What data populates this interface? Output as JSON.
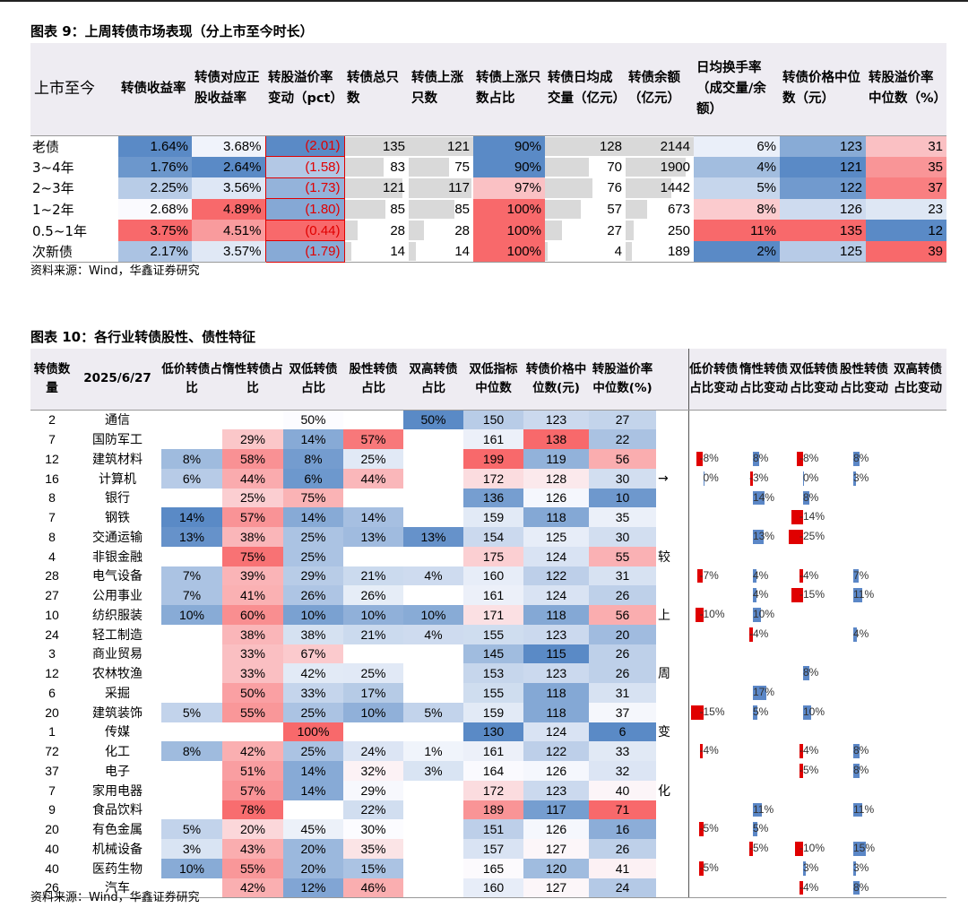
{
  "table1": {
    "title": "图表 9：上周转债市场表现（分上市至今时长）",
    "source": "资料来源：Wind，华鑫证券研究",
    "headers": [
      "上市至今",
      "转债收益率",
      "转债对应正股收益率",
      "转股溢价率变动（pct）",
      "转债总只数",
      "转债上涨只数",
      "转债上涨只数占比",
      "转债日均成交量（亿元）",
      "转债余额（亿元）",
      "日均换手率（成交量/余额）",
      "转债价格中位数（元）",
      "转股溢价率中位数（%）"
    ],
    "rows": [
      {
        "label": "老债",
        "ret": "1.64%",
        "stock_ret": "3.68%",
        "prem_chg": "(2.01)",
        "total": "135",
        "up": "121",
        "up_ratio": "90%",
        "volume": "128",
        "balance": "2144",
        "turnover": "6%",
        "price_med": "123",
        "prem_med": "31"
      },
      {
        "label": "3~4年",
        "ret": "1.76%",
        "stock_ret": "2.64%",
        "prem_chg": "(1.58)",
        "total": "83",
        "up": "75",
        "up_ratio": "90%",
        "volume": "70",
        "balance": "1900",
        "turnover": "4%",
        "price_med": "121",
        "prem_med": "35"
      },
      {
        "label": "2~3年",
        "ret": "2.25%",
        "stock_ret": "3.56%",
        "prem_chg": "(1.73)",
        "total": "121",
        "up": "117",
        "up_ratio": "97%",
        "volume": "76",
        "balance": "1442",
        "turnover": "5%",
        "price_med": "122",
        "prem_med": "37"
      },
      {
        "label": "1~2年",
        "ret": "2.68%",
        "stock_ret": "4.89%",
        "prem_chg": "(1.80)",
        "total": "85",
        "up": "85",
        "up_ratio": "100%",
        "volume": "57",
        "balance": "673",
        "turnover": "8%",
        "price_med": "126",
        "prem_med": "23"
      },
      {
        "label": "0.5~1年",
        "ret": "3.75%",
        "stock_ret": "4.51%",
        "prem_chg": "(0.44)",
        "total": "28",
        "up": "28",
        "up_ratio": "100%",
        "volume": "27",
        "balance": "250",
        "turnover": "11%",
        "price_med": "135",
        "prem_med": "12"
      },
      {
        "label": "次新债",
        "ret": "2.17%",
        "stock_ret": "3.57%",
        "prem_chg": "(1.79)",
        "total": "14",
        "up": "14",
        "up_ratio": "100%",
        "volume": "4",
        "balance": "189",
        "turnover": "2%",
        "price_med": "125",
        "prem_med": "39"
      }
    ]
  },
  "table2": {
    "title": "图表 10：各行业转债股性、债性特征",
    "source": "资料来源：Wind，华鑫证券研究",
    "date": "2025/6/27",
    "headers": [
      "转债数量",
      "2025/6/27",
      "低价转债占比",
      "惰性转债占比",
      "双低转债占比",
      "股性转债占比",
      "双高转债占比",
      "双低指标中位数",
      "转债价格中位数(元)",
      "转股溢价率中位数(%)",
      "",
      "低价转债占比变动",
      "惰性转债占比变动",
      "双低转债占比变动",
      "股性转债占比变动",
      "双高转债占比变动"
    ],
    "mid_text": [
      "",
      "",
      "",
      "→",
      "",
      "",
      "",
      "较",
      "",
      "",
      "上",
      "",
      "",
      "周",
      "",
      "",
      "变",
      "",
      "",
      "化",
      "",
      "",
      "",
      ""
    ],
    "rows": [
      {
        "count": "2",
        "industry": "通信",
        "low": "",
        "inert": "",
        "dlow": "50%",
        "equity": "",
        "dhigh": "50%",
        "dlow_idx": "150",
        "price": "123",
        "prem": "27",
        "chg": [
          "",
          "",
          "",
          "",
          ""
        ]
      },
      {
        "count": "7",
        "industry": "国防军工",
        "low": "",
        "inert": "29%",
        "dlow": "14%",
        "equity": "57%",
        "dhigh": "",
        "dlow_idx": "161",
        "price": "138",
        "prem": "22",
        "chg": [
          "",
          "",
          "",
          "",
          ""
        ]
      },
      {
        "count": "12",
        "industry": "建筑材料",
        "low": "8%",
        "inert": "58%",
        "dlow": "8%",
        "equity": "25%",
        "dhigh": "",
        "dlow_idx": "199",
        "price": "119",
        "prem": "56",
        "chg": [
          "-8%",
          "8%",
          "-8%",
          "8%",
          ""
        ]
      },
      {
        "count": "16",
        "industry": "计算机",
        "low": "6%",
        "inert": "44%",
        "dlow": "6%",
        "equity": "44%",
        "dhigh": "",
        "dlow_idx": "172",
        "price": "128",
        "prem": "30",
        "chg": [
          "0%",
          "-3%",
          "0%",
          "3%",
          ""
        ]
      },
      {
        "count": "8",
        "industry": "银行",
        "low": "",
        "inert": "25%",
        "dlow": "75%",
        "equity": "",
        "dhigh": "",
        "dlow_idx": "136",
        "price": "126",
        "prem": "10",
        "chg": [
          "",
          "14%",
          "8%",
          "",
          ""
        ]
      },
      {
        "count": "7",
        "industry": "钢铁",
        "low": "14%",
        "inert": "57%",
        "dlow": "14%",
        "equity": "14%",
        "dhigh": "",
        "dlow_idx": "159",
        "price": "118",
        "prem": "35",
        "chg": [
          "",
          "",
          "-14%",
          "",
          ""
        ]
      },
      {
        "count": "8",
        "industry": "交通运输",
        "low": "13%",
        "inert": "38%",
        "dlow": "25%",
        "equity": "13%",
        "dhigh": "13%",
        "dlow_idx": "154",
        "price": "125",
        "prem": "30",
        "chg": [
          "",
          "13%",
          "-25%",
          "",
          ""
        ]
      },
      {
        "count": "4",
        "industry": "非银金融",
        "low": "",
        "inert": "75%",
        "dlow": "25%",
        "equity": "",
        "dhigh": "",
        "dlow_idx": "175",
        "price": "124",
        "prem": "55",
        "chg": [
          "",
          "",
          "",
          "",
          ""
        ]
      },
      {
        "count": "28",
        "industry": "电气设备",
        "low": "7%",
        "inert": "39%",
        "dlow": "29%",
        "equity": "21%",
        "dhigh": "4%",
        "dlow_idx": "160",
        "price": "122",
        "prem": "31",
        "chg": [
          "-7%",
          "4%",
          "-4%",
          "7%",
          ""
        ]
      },
      {
        "count": "27",
        "industry": "公用事业",
        "low": "7%",
        "inert": "41%",
        "dlow": "26%",
        "equity": "26%",
        "dhigh": "",
        "dlow_idx": "161",
        "price": "124",
        "prem": "26",
        "chg": [
          "",
          "4%",
          "-15%",
          "11%",
          ""
        ]
      },
      {
        "count": "10",
        "industry": "纺织服装",
        "low": "10%",
        "inert": "60%",
        "dlow": "10%",
        "equity": "10%",
        "dhigh": "10%",
        "dlow_idx": "171",
        "price": "118",
        "prem": "56",
        "chg": [
          "-10%",
          "10%",
          "",
          "",
          ""
        ]
      },
      {
        "count": "24",
        "industry": "轻工制造",
        "low": "",
        "inert": "38%",
        "dlow": "38%",
        "equity": "21%",
        "dhigh": "4%",
        "dlow_idx": "155",
        "price": "123",
        "prem": "20",
        "chg": [
          "",
          "-4%",
          "",
          "4%",
          ""
        ]
      },
      {
        "count": "3",
        "industry": "商业贸易",
        "low": "",
        "inert": "33%",
        "dlow": "67%",
        "equity": "",
        "dhigh": "",
        "dlow_idx": "145",
        "price": "115",
        "prem": "26",
        "chg": [
          "",
          "",
          "",
          "",
          ""
        ]
      },
      {
        "count": "12",
        "industry": "农林牧渔",
        "low": "",
        "inert": "33%",
        "dlow": "42%",
        "equity": "25%",
        "dhigh": "",
        "dlow_idx": "153",
        "price": "123",
        "prem": "26",
        "chg": [
          "",
          "",
          "8%",
          "",
          ""
        ]
      },
      {
        "count": "6",
        "industry": "采掘",
        "low": "",
        "inert": "50%",
        "dlow": "33%",
        "equity": "17%",
        "dhigh": "",
        "dlow_idx": "155",
        "price": "118",
        "prem": "31",
        "chg": [
          "",
          "17%",
          "",
          "",
          ""
        ]
      },
      {
        "count": "20",
        "industry": "建筑装饰",
        "low": "5%",
        "inert": "55%",
        "dlow": "25%",
        "equity": "10%",
        "dhigh": "5%",
        "dlow_idx": "159",
        "price": "118",
        "prem": "37",
        "chg": [
          "-15%",
          "5%",
          "10%",
          "",
          ""
        ]
      },
      {
        "count": "1",
        "industry": "传媒",
        "low": "",
        "inert": "",
        "dlow": "100%",
        "equity": "",
        "dhigh": "",
        "dlow_idx": "130",
        "price": "124",
        "prem": "6",
        "chg": [
          "",
          "",
          "",
          "",
          ""
        ]
      },
      {
        "count": "72",
        "industry": "化工",
        "low": "8%",
        "inert": "42%",
        "dlow": "25%",
        "equity": "24%",
        "dhigh": "1%",
        "dlow_idx": "161",
        "price": "122",
        "prem": "33",
        "chg": [
          "-4%",
          "",
          "-4%",
          "8%",
          ""
        ]
      },
      {
        "count": "37",
        "industry": "电子",
        "low": "",
        "inert": "51%",
        "dlow": "14%",
        "equity": "32%",
        "dhigh": "3%",
        "dlow_idx": "164",
        "price": "126",
        "prem": "32",
        "chg": [
          "",
          "",
          "-5%",
          "8%",
          ""
        ]
      },
      {
        "count": "7",
        "industry": "家用电器",
        "low": "",
        "inert": "57%",
        "dlow": "14%",
        "equity": "29%",
        "dhigh": "",
        "dlow_idx": "172",
        "price": "123",
        "prem": "40",
        "chg": [
          "",
          "",
          "",
          "",
          ""
        ]
      },
      {
        "count": "9",
        "industry": "食品饮料",
        "low": "",
        "inert": "78%",
        "dlow": "",
        "equity": "22%",
        "dhigh": "",
        "dlow_idx": "189",
        "price": "117",
        "prem": "71",
        "chg": [
          "",
          "11%",
          "",
          "11%",
          ""
        ]
      },
      {
        "count": "20",
        "industry": "有色金属",
        "low": "5%",
        "inert": "20%",
        "dlow": "45%",
        "equity": "30%",
        "dhigh": "",
        "dlow_idx": "151",
        "price": "126",
        "prem": "16",
        "chg": [
          "-5%",
          "5%",
          "",
          "",
          ""
        ]
      },
      {
        "count": "40",
        "industry": "机械设备",
        "low": "3%",
        "inert": "43%",
        "dlow": "20%",
        "equity": "35%",
        "dhigh": "",
        "dlow_idx": "157",
        "price": "127",
        "prem": "26",
        "chg": [
          "",
          "-5%",
          "-10%",
          "15%",
          ""
        ]
      },
      {
        "count": "40",
        "industry": "医药生物",
        "low": "10%",
        "inert": "55%",
        "dlow": "20%",
        "equity": "15%",
        "dhigh": "",
        "dlow_idx": "165",
        "price": "120",
        "prem": "41",
        "chg": [
          "-5%",
          "",
          "3%",
          "3%",
          ""
        ]
      },
      {
        "count": "26",
        "industry": "汽车",
        "low": "",
        "inert": "42%",
        "dlow": "12%",
        "equity": "46%",
        "dhigh": "",
        "dlow_idx": "160",
        "price": "127",
        "prem": "24",
        "chg": [
          "",
          "",
          "-4%",
          "8%",
          ""
        ]
      }
    ]
  }
}
